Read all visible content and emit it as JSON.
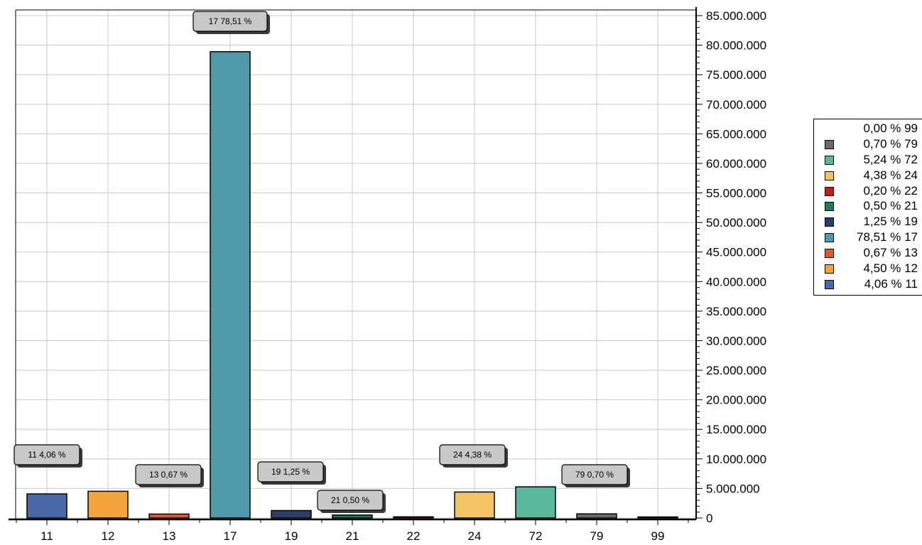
{
  "chart_data": {
    "type": "bar",
    "categories": [
      "11",
      "12",
      "13",
      "17",
      "19",
      "21",
      "22",
      "24",
      "72",
      "79",
      "99"
    ],
    "values": [
      4080000,
      4520000,
      670000,
      78900000,
      1260000,
      500000,
      200000,
      4400000,
      5270000,
      700000,
      0
    ],
    "colors": [
      "#4a67a8",
      "#f2a33a",
      "#e4572e",
      "#4f9aab",
      "#2c3e6b",
      "#1f7a5f",
      "#c01f1f",
      "#f3c462",
      "#5ab89a",
      "#6b6b6b",
      "#cccccc"
    ],
    "callouts": [
      {
        "category": "11",
        "text": "11 4,06 %"
      },
      {
        "category": "13",
        "text": "13 0,67 %"
      },
      {
        "category": "17",
        "text": "17 78,51 %"
      },
      {
        "category": "19",
        "text": "19 1,25 %"
      },
      {
        "category": "21",
        "text": "21 0,50 %"
      },
      {
        "category": "24",
        "text": "24 4,38 %"
      },
      {
        "category": "79",
        "text": "79 0,70 %"
      }
    ],
    "y_ticks": [
      "0",
      "5.000.000",
      "10.000.000",
      "15.000.000",
      "20.000.000",
      "25.000.000",
      "30.000.000",
      "35.000.000",
      "40.000.000",
      "45.000.000",
      "50.000.000",
      "55.000.000",
      "60.000.000",
      "65.000.000",
      "70.000.000",
      "75.000.000",
      "80.000.000",
      "85.000.000"
    ],
    "ylim": [
      0,
      85000000
    ],
    "y_axis_position": "right",
    "grid": true,
    "legend_position": "right",
    "legend": [
      {
        "label": "0,00 % 99",
        "color": ""
      },
      {
        "label": "0,70 % 79",
        "color": "#6b6b6b"
      },
      {
        "label": "5,24 % 72",
        "color": "#5ab89a"
      },
      {
        "label": "4,38 % 24",
        "color": "#f3c462"
      },
      {
        "label": "0,20 % 22",
        "color": "#c01f1f"
      },
      {
        "label": "0,50 % 21",
        "color": "#1f7a5f"
      },
      {
        "label": "1,25 % 19",
        "color": "#2c3e6b"
      },
      {
        "label": "78,51 % 17",
        "color": "#4f9aab"
      },
      {
        "label": "0,67 % 13",
        "color": "#e4572e"
      },
      {
        "label": "4,50 % 12",
        "color": "#f2a33a"
      },
      {
        "label": "4,06 % 11",
        "color": "#4a67a8"
      }
    ]
  }
}
